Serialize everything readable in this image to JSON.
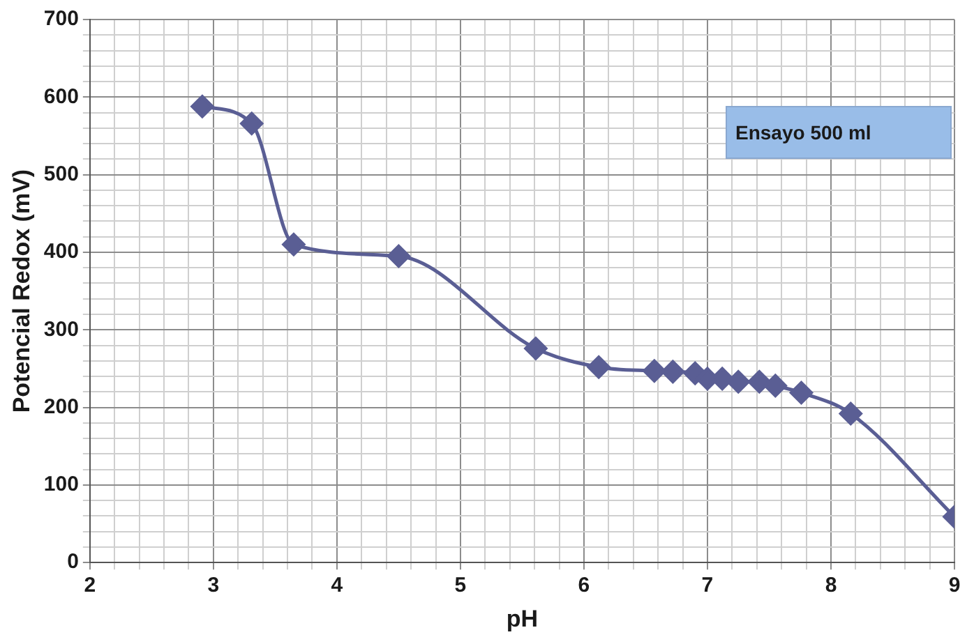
{
  "chart_data": {
    "type": "line",
    "xlabel": "pH",
    "ylabel": "Potencial Redox (mV)",
    "x": [
      2.91,
      3.31,
      3.65,
      4.5,
      5.61,
      6.12,
      6.57,
      6.72,
      6.9,
      7.0,
      7.12,
      7.25,
      7.42,
      7.55,
      7.76,
      8.16,
      9.0
    ],
    "series": [
      {
        "color": "#5a5e94",
        "values": [
          588,
          566,
          410,
          395,
          276,
          252,
          247,
          246,
          244,
          237,
          237,
          233,
          233,
          228,
          219,
          192,
          59
        ]
      }
    ],
    "xlim": [
      2,
      9
    ],
    "xticks": [
      2,
      {
        "value": 2.2,
        "label": null
      },
      {
        "value": 2.4,
        "label": null
      },
      {
        "value": 2.6,
        "label": null
      },
      {
        "value": 2.8,
        "label": null
      },
      3,
      {
        "value": 3.2,
        "label": null
      },
      {
        "value": 3.4,
        "label": null
      },
      {
        "value": 3.6,
        "label": null
      },
      {
        "value": 3.8,
        "label": null
      },
      4,
      {
        "value": 4.2,
        "label": null
      },
      {
        "value": 4.4,
        "label": null
      },
      {
        "value": 4.6,
        "label": null
      },
      {
        "value": 4.8,
        "label": null
      },
      5,
      {
        "value": 5.2,
        "label": null
      },
      {
        "value": 5.4,
        "label": null
      },
      {
        "value": 5.6,
        "label": null
      },
      {
        "value": 5.8,
        "label": null
      },
      6,
      {
        "value": 6.2,
        "label": null
      },
      {
        "value": 6.4,
        "label": null
      },
      {
        "value": 6.6,
        "label": null
      },
      {
        "value": 6.8,
        "label": null
      },
      7,
      {
        "value": 7.2,
        "label": null
      },
      {
        "value": 7.4,
        "label": null
      },
      {
        "value": 7.6,
        "label": null
      },
      {
        "value": 7.8,
        "label": null
      },
      8,
      {
        "value": 8.2,
        "label": null
      },
      {
        "value": 8.4,
        "label": null
      },
      {
        "value": 8.6,
        "label": null
      },
      {
        "value": 8.8,
        "label": null
      },
      9
    ],
    "ylim": [
      0,
      700
    ],
    "yticks": [
      0,
      {
        "value": 20,
        "label": null
      },
      {
        "value": 40,
        "label": null
      },
      {
        "value": 60,
        "label": null
      },
      {
        "value": 80,
        "label": null
      },
      100,
      {
        "value": 120,
        "label": null
      },
      {
        "value": 140,
        "label": null
      },
      {
        "value": 160,
        "label": null
      },
      {
        "value": 180,
        "label": null
      },
      200,
      {
        "value": 220,
        "label": null
      },
      {
        "value": 240,
        "label": null
      },
      {
        "value": 260,
        "label": null
      },
      {
        "value": 280,
        "label": null
      },
      300,
      {
        "value": 320,
        "label": null
      },
      {
        "value": 340,
        "label": null
      },
      {
        "value": 360,
        "label": null
      },
      {
        "value": 380,
        "label": null
      },
      400,
      {
        "value": 420,
        "label": null
      },
      {
        "value": 440,
        "label": null
      },
      {
        "value": 460,
        "label": null
      },
      {
        "value": 480,
        "label": null
      },
      500,
      {
        "value": 520,
        "label": null
      },
      {
        "value": 540,
        "label": null
      },
      {
        "value": 560,
        "label": null
      },
      {
        "value": 580,
        "label": null
      },
      600,
      {
        "value": 620,
        "label": null
      },
      {
        "value": 640,
        "label": null
      },
      {
        "value": 660,
        "label": null
      },
      {
        "value": 680,
        "label": null
      },
      700
    ],
    "grid": true,
    "legend": false,
    "marker": "diamond",
    "line_style": "solid",
    "annotations": [
      "Ensayo 500 ml"
    ]
  }
}
